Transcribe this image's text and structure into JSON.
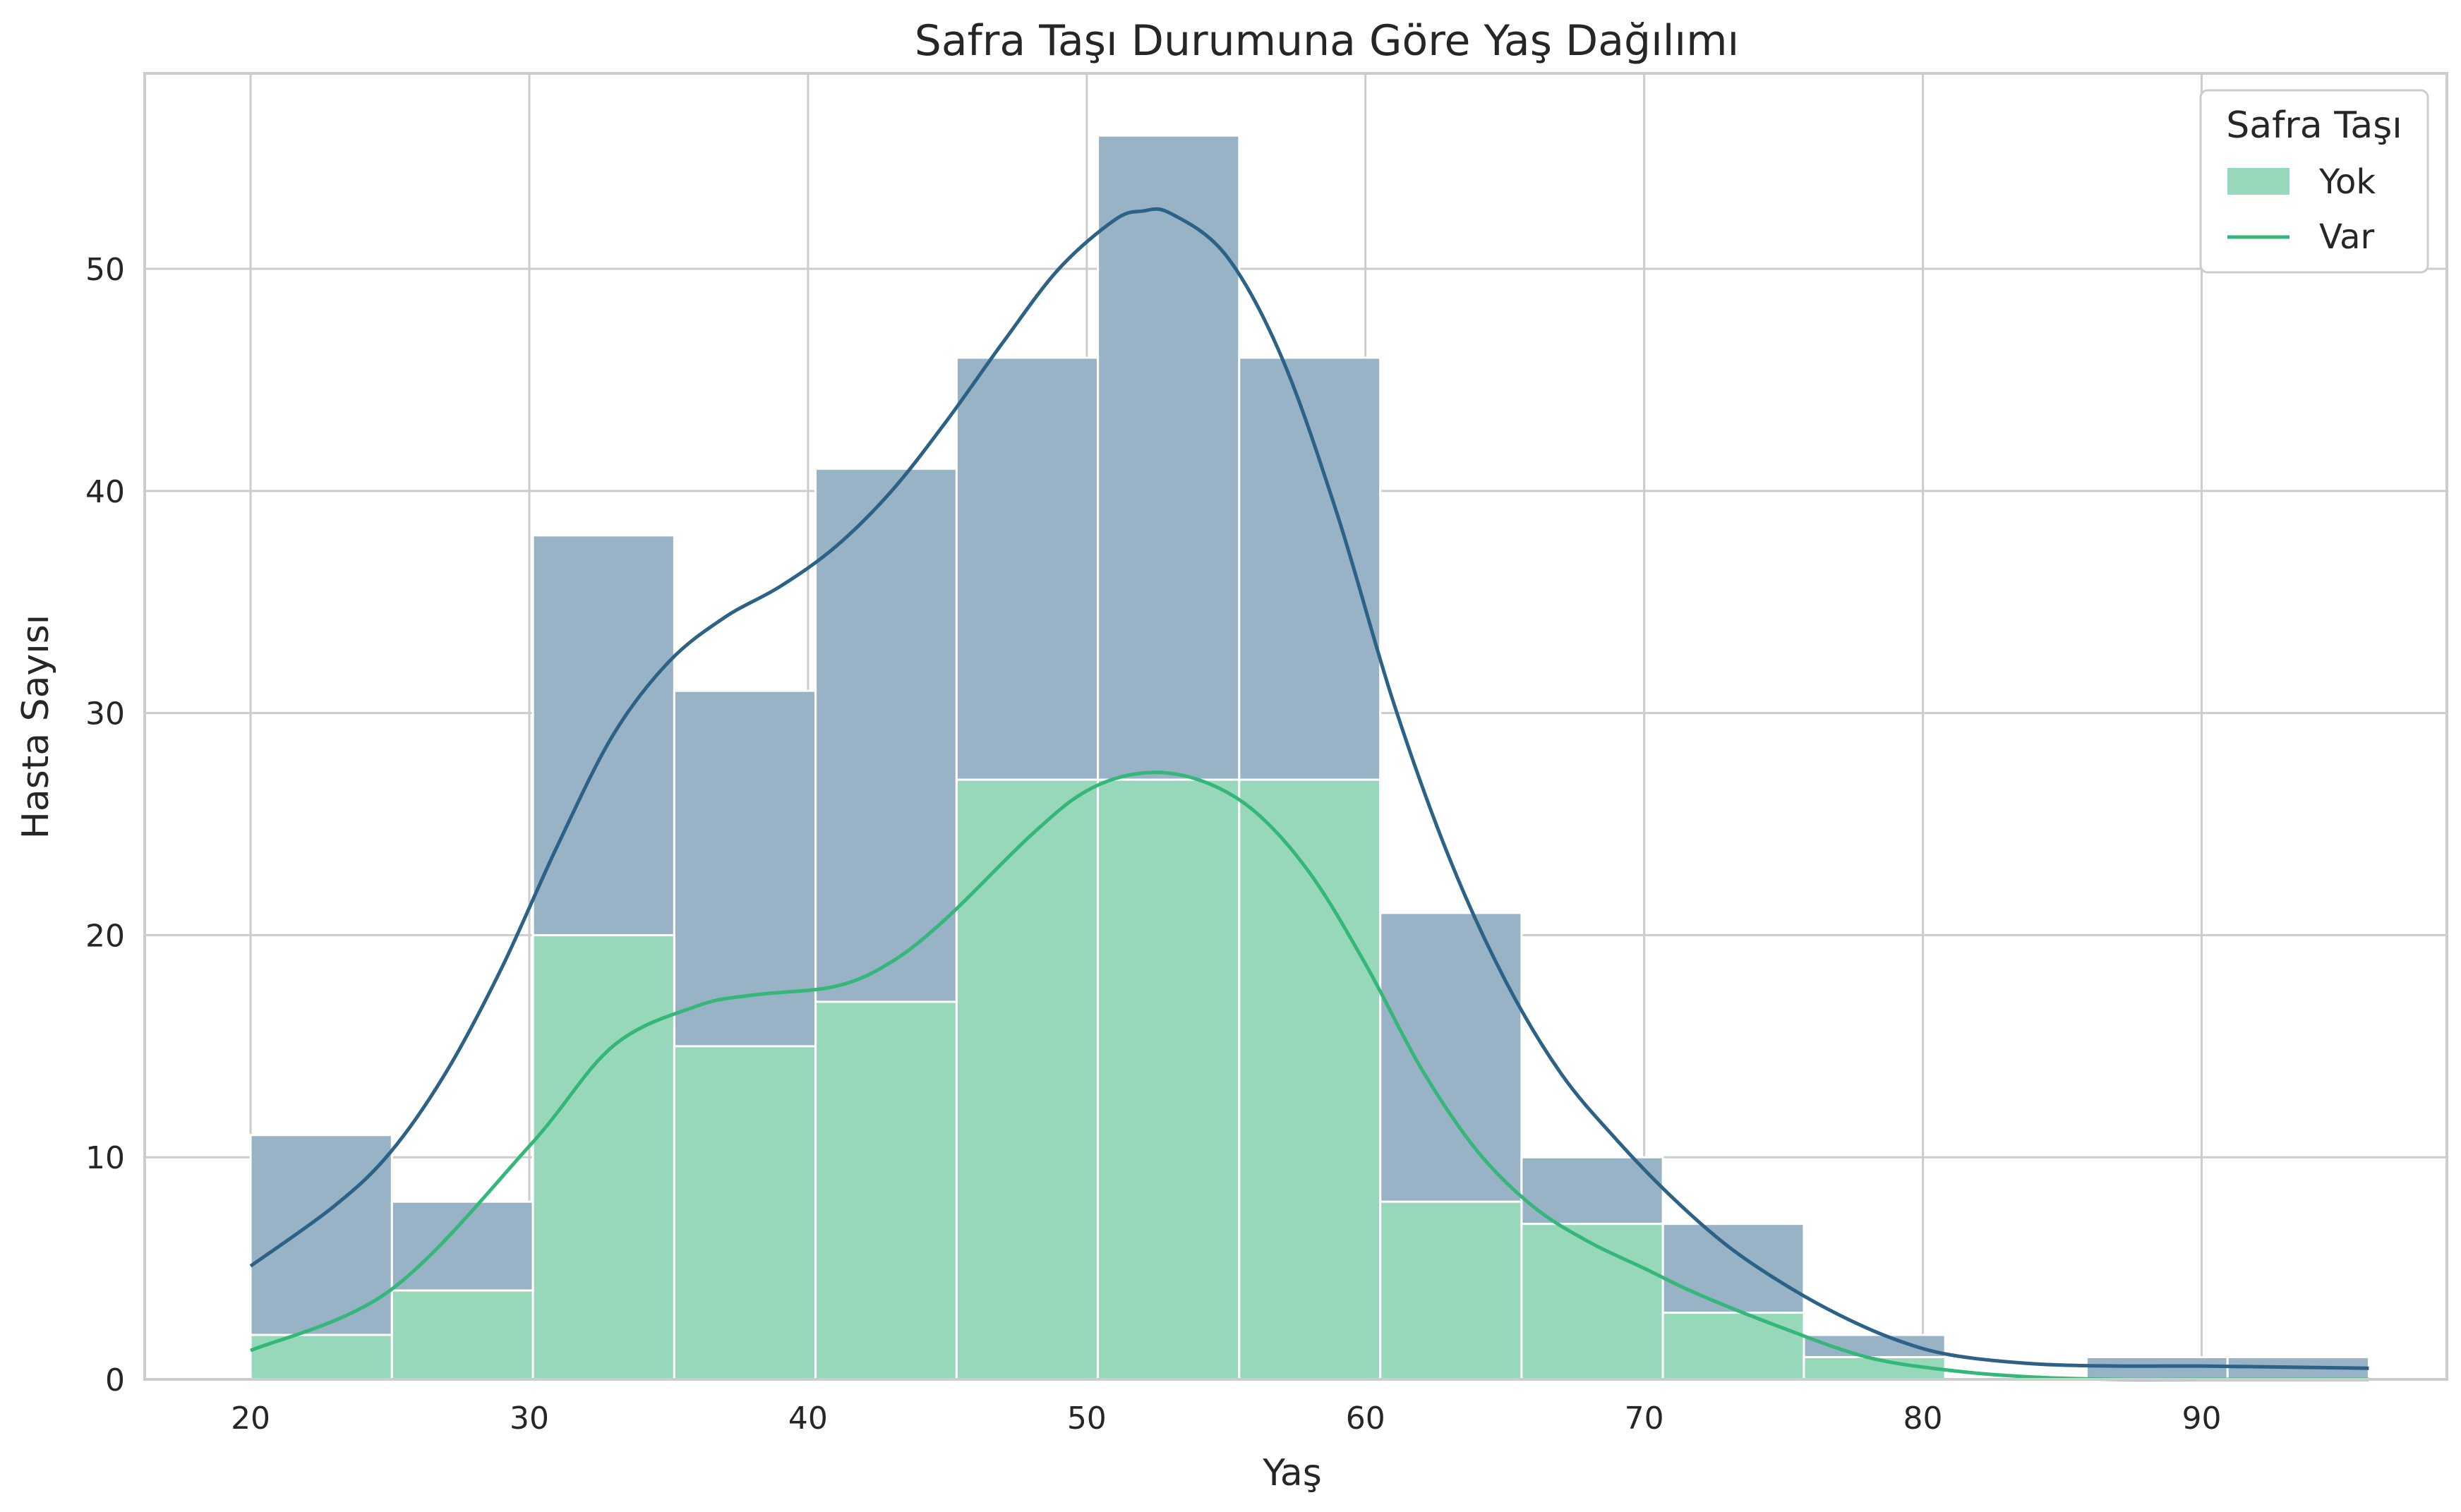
{
  "chart_data": {
    "type": "histogram",
    "title": "Safra Taşı Durumuna Göre Yaş Dağılımı",
    "xlabel": "Yaş",
    "ylabel": "Hasta Sayısı",
    "xlim": [
      16.2,
      98.8
    ],
    "ylim": [
      0,
      58.8
    ],
    "xticks": [
      20,
      30,
      40,
      50,
      60,
      70,
      80,
      90
    ],
    "yticks": [
      0,
      10,
      20,
      30,
      40,
      50
    ],
    "grid": true,
    "stacked": true,
    "bin_edges": [
      20,
      25.07,
      30.13,
      35.2,
      40.27,
      45.33,
      50.4,
      55.47,
      60.53,
      65.6,
      70.67,
      75.73,
      80.8,
      85.87,
      90.93,
      96
    ],
    "legend": {
      "title": "Safra Taşı",
      "placement": "top-right",
      "entries": [
        {
          "label": "Yok",
          "kind": "patch",
          "color": "#98d8ba"
        },
        {
          "label": "Var",
          "kind": "line",
          "color": "#35b779"
        }
      ]
    },
    "series": [
      {
        "role": "lower",
        "fill_color": "#98d8ba",
        "line_color": "#35b779",
        "counts": [
          2,
          4,
          20,
          15,
          17,
          27,
          27,
          27,
          8,
          7,
          3,
          1,
          0,
          0,
          0
        ],
        "kde": [
          [
            20,
            1.3
          ],
          [
            25,
            4
          ],
          [
            30,
            10.5
          ],
          [
            33,
            15
          ],
          [
            36,
            16.8
          ],
          [
            38,
            17.3
          ],
          [
            41,
            17.7
          ],
          [
            43,
            18.8
          ],
          [
            45,
            20.8
          ],
          [
            48,
            24.5
          ],
          [
            50,
            26.5
          ],
          [
            52,
            27.3
          ],
          [
            54,
            27
          ],
          [
            56,
            25.6
          ],
          [
            58,
            22.8
          ],
          [
            60,
            18.7
          ],
          [
            62,
            14
          ],
          [
            64,
            10.3
          ],
          [
            66,
            7.8
          ],
          [
            68,
            6.2
          ],
          [
            70,
            5
          ],
          [
            72,
            3.8
          ],
          [
            75,
            2.3
          ],
          [
            78,
            1
          ],
          [
            81,
            0.4
          ],
          [
            84,
            0.1
          ],
          [
            87,
            0
          ],
          [
            90,
            0
          ],
          [
            96,
            0
          ]
        ]
      },
      {
        "role": "total",
        "fill_color": "#98b2c6",
        "line_color": "#2c6286",
        "counts": [
          11,
          8,
          38,
          31,
          41,
          46,
          56,
          46,
          21,
          10,
          7,
          2,
          0,
          1,
          1
        ],
        "kde": [
          [
            20,
            5.1
          ],
          [
            23,
            7.8
          ],
          [
            25,
            10.2
          ],
          [
            27,
            13.8
          ],
          [
            29,
            18.5
          ],
          [
            31,
            24
          ],
          [
            33,
            29
          ],
          [
            35,
            32.3
          ],
          [
            37,
            34.3
          ],
          [
            39,
            35.7
          ],
          [
            41,
            37.5
          ],
          [
            43,
            40
          ],
          [
            45,
            43.2
          ],
          [
            47,
            46.7
          ],
          [
            49,
            50
          ],
          [
            51,
            52.2
          ],
          [
            52,
            52.6
          ],
          [
            53,
            52.5
          ],
          [
            55,
            50.6
          ],
          [
            57,
            46
          ],
          [
            59,
            38.9
          ],
          [
            61,
            30.5
          ],
          [
            63,
            23.5
          ],
          [
            65,
            18
          ],
          [
            67,
            13.8
          ],
          [
            69,
            10.8
          ],
          [
            71,
            8.2
          ],
          [
            73,
            6
          ],
          [
            75,
            4.3
          ],
          [
            77,
            2.9
          ],
          [
            79,
            1.8
          ],
          [
            81,
            1.1
          ],
          [
            84,
            0.7
          ],
          [
            87,
            0.6
          ],
          [
            90,
            0.6
          ],
          [
            93,
            0.55
          ],
          [
            96,
            0.5
          ]
        ]
      }
    ]
  }
}
